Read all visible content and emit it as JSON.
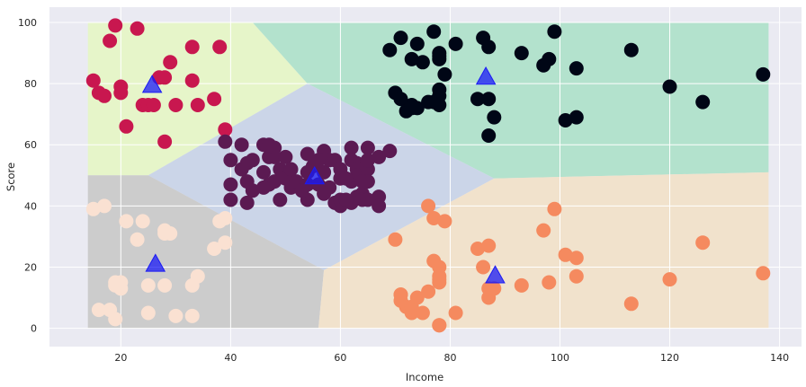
{
  "chart_data": {
    "type": "scatter",
    "title": "",
    "xlabel": "Income",
    "ylabel": "Score",
    "xlim": [
      7,
      144
    ],
    "ylim": [
      -6,
      105
    ],
    "x_ticks": [
      20,
      40,
      60,
      80,
      100,
      120,
      140
    ],
    "y_ticks": [
      0,
      20,
      40,
      60,
      80,
      100
    ],
    "grid": true,
    "background_color": "#EAEAF2",
    "legend": "none",
    "regions": [
      {
        "color": "#E6F5C9",
        "polygon": [
          [
            14,
            100
          ],
          [
            44,
            100
          ],
          [
            54,
            80
          ],
          [
            25,
            50
          ],
          [
            14,
            50
          ]
        ]
      },
      {
        "color": "#B3E2CD",
        "polygon": [
          [
            44,
            100
          ],
          [
            138,
            100
          ],
          [
            138,
            51
          ],
          [
            88,
            49
          ],
          [
            54,
            80
          ]
        ]
      },
      {
        "color": "#CBD5E8",
        "polygon": [
          [
            25,
            50
          ],
          [
            54,
            80
          ],
          [
            88,
            49
          ],
          [
            57,
            19
          ]
        ]
      },
      {
        "color": "#CCCCCC",
        "polygon": [
          [
            14,
            50
          ],
          [
            25,
            50
          ],
          [
            57,
            19
          ],
          [
            56,
            0
          ],
          [
            14,
            0
          ]
        ]
      },
      {
        "color": "#F1E2CC",
        "polygon": [
          [
            57,
            19
          ],
          [
            88,
            49
          ],
          [
            138,
            51
          ],
          [
            138,
            0
          ],
          [
            56,
            0
          ]
        ]
      }
    ],
    "series": [
      {
        "color": "#C8174F",
        "x": [
          15,
          16,
          17,
          18,
          19,
          20,
          20,
          21,
          23,
          24,
          25,
          26,
          27,
          28,
          28,
          29,
          30,
          33,
          33,
          34,
          37,
          38,
          39
        ],
        "y": [
          81,
          77,
          76,
          94,
          99,
          79,
          77,
          66,
          98,
          73,
          73,
          73,
          82,
          61,
          82,
          87,
          73,
          81,
          92,
          73,
          75,
          92,
          65
        ]
      },
      {
        "color": "#5B1A52",
        "x": [
          39,
          40,
          40,
          40,
          42,
          42,
          43,
          43,
          44,
          44,
          46,
          46,
          47,
          47,
          48,
          48,
          48,
          49,
          50,
          50,
          54,
          54,
          54,
          54,
          57,
          57,
          58,
          58,
          59,
          59,
          60,
          60,
          60,
          60,
          62,
          62,
          62,
          62,
          63,
          63,
          63,
          63,
          64,
          64,
          65,
          65,
          65,
          65,
          67,
          67,
          67,
          69,
          43,
          46,
          47,
          49,
          51,
          51,
          52,
          53,
          55,
          56,
          56,
          57,
          61,
          61,
          64,
          65
        ],
        "y": [
          61,
          55,
          47,
          42,
          60,
          52,
          54,
          41,
          45,
          55,
          51,
          60,
          47,
          56,
          56,
          48,
          59,
          52,
          49,
          56,
          57,
          47,
          42,
          51,
          51,
          58,
          46,
          55,
          41,
          55,
          52,
          49,
          40,
          42,
          59,
          55,
          48,
          41,
          54,
          52,
          43,
          50,
          44,
          42,
          52,
          48,
          59,
          55,
          43,
          56,
          40,
          58,
          48,
          46,
          60,
          42,
          46,
          52,
          48,
          45,
          53,
          47,
          55,
          44,
          42,
          49,
          48,
          42
        ]
      },
      {
        "color": "#000616",
        "x": [
          69,
          70,
          71,
          71,
          72,
          73,
          73,
          73,
          74,
          74,
          75,
          76,
          77,
          77,
          78,
          78,
          78,
          78,
          78,
          78,
          79,
          81,
          85,
          86,
          87,
          87,
          87,
          88,
          93,
          97,
          98,
          99,
          101,
          103,
          103,
          113,
          120,
          126,
          137
        ],
        "y": [
          91,
          77,
          95,
          75,
          71,
          88,
          73,
          72,
          93,
          72,
          87,
          74,
          97,
          74,
          90,
          88,
          76,
          89,
          78,
          73,
          83,
          93,
          75,
          95,
          63,
          75,
          92,
          69,
          90,
          86,
          88,
          97,
          68,
          85,
          69,
          91,
          79,
          74,
          83
        ]
      },
      {
        "color": "#FAE1D2",
        "x": [
          15,
          16,
          17,
          18,
          19,
          19,
          19,
          20,
          20,
          21,
          23,
          24,
          25,
          25,
          28,
          28,
          28,
          29,
          30,
          33,
          33,
          34,
          37,
          38,
          39,
          39
        ],
        "y": [
          39,
          6,
          40,
          6,
          3,
          14,
          15,
          13,
          15,
          35,
          29,
          35,
          5,
          14,
          32,
          31,
          14,
          31,
          4,
          4,
          14,
          17,
          26,
          35,
          36,
          28
        ]
      },
      {
        "color": "#F58A5F",
        "x": [
          70,
          71,
          71,
          71,
          72,
          73,
          73,
          74,
          75,
          76,
          76,
          77,
          77,
          78,
          78,
          78,
          78,
          78,
          78,
          79,
          81,
          85,
          86,
          87,
          87,
          87,
          88,
          93,
          97,
          98,
          99,
          101,
          103,
          103,
          113,
          120,
          126,
          137
        ],
        "y": [
          29,
          11,
          9,
          11,
          7,
          5,
          7,
          10,
          5,
          40,
          12,
          36,
          22,
          15,
          17,
          20,
          16,
          1,
          1,
          35,
          5,
          26,
          20,
          10,
          27,
          13,
          13,
          14,
          32,
          15,
          39,
          24,
          17,
          23,
          8,
          16,
          28,
          18
        ]
      },
      {
        "color": "#1A1AF5",
        "marker": "triangle",
        "x": [
          25.7,
          55.3,
          86.5,
          88.2,
          26.3
        ],
        "y": [
          79.4,
          49.5,
          82.1,
          17.1,
          20.9
        ]
      }
    ]
  }
}
